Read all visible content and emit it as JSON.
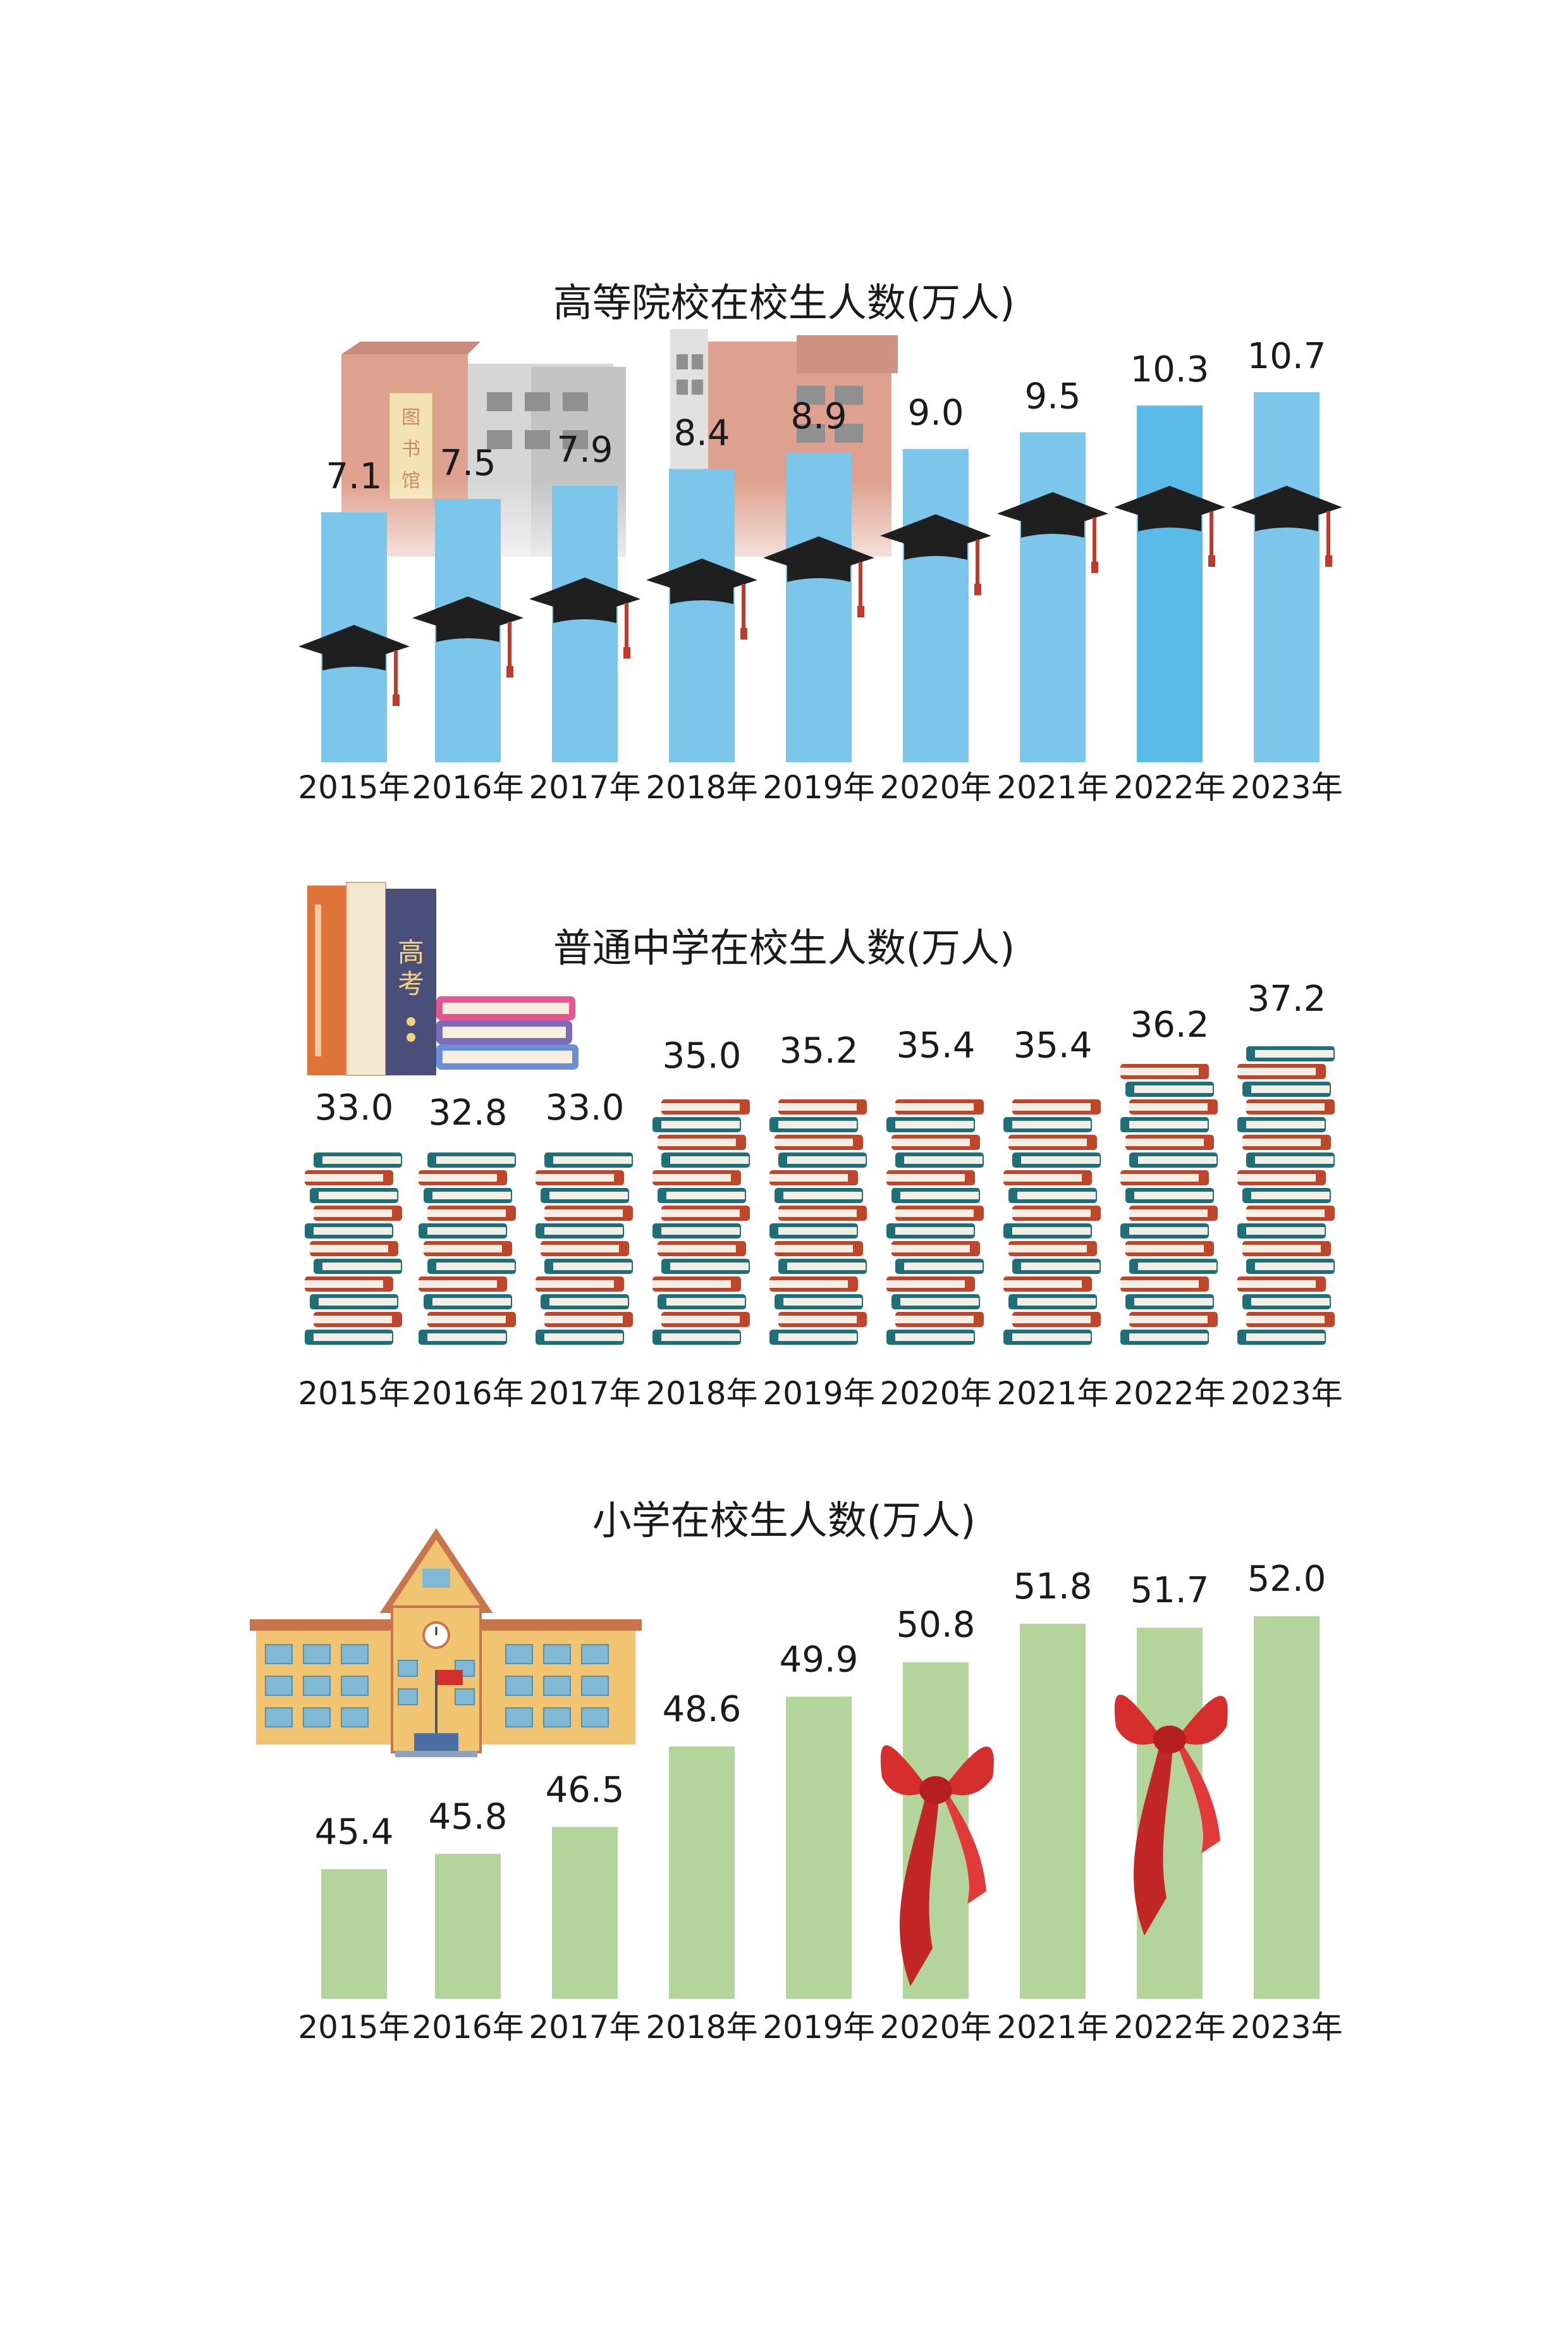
{
  "colors": {
    "higher_bar": "#7cc6ec",
    "higher_bar_highlight": "#5bbbe8",
    "primary_bar": "#b3d49b",
    "cap_black": "#1f1f1f",
    "cap_tassel": "#c0392b",
    "book_teal": "#1e6f78",
    "book_red": "#c0462a",
    "scarf_red": "#d62d2d"
  },
  "chart_data": [
    {
      "type": "bar",
      "title": "高等院校在校生人数(万人)",
      "categories": [
        "2015年",
        "2016年",
        "2017年",
        "2018年",
        "2019年",
        "2020年",
        "2021年",
        "2022年",
        "2023年"
      ],
      "values": [
        7.1,
        7.5,
        7.9,
        8.4,
        8.9,
        9.0,
        9.5,
        10.3,
        10.7
      ],
      "labels": [
        "7.1",
        "7.5",
        "7.9",
        "8.4",
        "8.9",
        "9.0",
        "9.5",
        "10.3",
        "10.7"
      ],
      "ylim": [
        0,
        11
      ],
      "icon": "graduation-cap-icon",
      "decoration": "campus-building-icon",
      "decoration_text": "图书馆"
    },
    {
      "type": "bar",
      "title": "普通中学在校生人数(万人)",
      "categories": [
        "2015年",
        "2016年",
        "2017年",
        "2018年",
        "2019年",
        "2020年",
        "2021年",
        "2022年",
        "2023年"
      ],
      "values": [
        33.0,
        32.8,
        33.0,
        35.0,
        35.2,
        35.4,
        35.4,
        36.2,
        37.2
      ],
      "labels": [
        "33.0",
        "32.8",
        "33.0",
        "35.0",
        "35.2",
        "35.4",
        "35.4",
        "36.2",
        "37.2"
      ],
      "icon": "book-stack-icon",
      "decoration": "upright-books-icon",
      "decoration_text": "高考"
    },
    {
      "type": "bar",
      "title": "小学在校生人数(万人)",
      "categories": [
        "2015年",
        "2016年",
        "2017年",
        "2018年",
        "2019年",
        "2020年",
        "2021年",
        "2022年",
        "2023年"
      ],
      "values": [
        45.4,
        45.8,
        46.5,
        48.6,
        49.9,
        50.8,
        51.8,
        51.7,
        52.0
      ],
      "labels": [
        "45.4",
        "45.8",
        "46.5",
        "48.6",
        "49.9",
        "50.8",
        "51.8",
        "51.7",
        "52.0"
      ],
      "icon": "red-scarf-icon",
      "decoration": "school-building-icon"
    }
  ]
}
